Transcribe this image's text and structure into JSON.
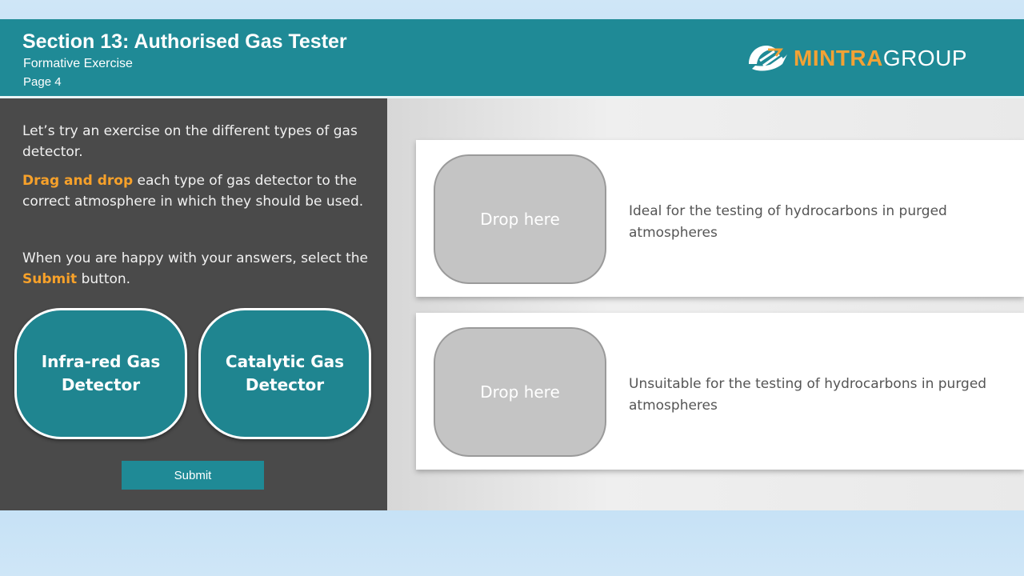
{
  "header": {
    "title": "Section 13: Authorised Gas Tester",
    "subtitle": "Formative Exercise",
    "page": "Page 4",
    "logo": {
      "part1": "MINTRA",
      "part2": "GROUP",
      "icon": "mintra-logo-icon"
    }
  },
  "instructions": {
    "p1": "Let’s try an exercise on the different types of gas detector.",
    "p2_highlight": "Drag and drop",
    "p2_rest": " each type of gas detector to the correct atmosphere in which they should be used.",
    "p3_start": "When you are happy with your answers, select the ",
    "p3_highlight": "Submit",
    "p3_end": " button."
  },
  "drag_items": [
    {
      "label_line1": "Infra-red Gas",
      "label_line2": "Detector"
    },
    {
      "label_line1": "Catalytic Gas",
      "label_line2": "Detector"
    }
  ],
  "submit_label": "Submit",
  "targets": [
    {
      "placeholder": "Drop here",
      "description": "Ideal for the testing of hydrocarbons in purged atmospheres"
    },
    {
      "placeholder": "Drop here",
      "description": "Unsuitable for the testing of hydrocarbons in purged atmospheres"
    }
  ],
  "colors": {
    "teal": "#1f8a96",
    "accent_orange": "#f7a12a",
    "panel_dark": "#4a4a4a"
  }
}
